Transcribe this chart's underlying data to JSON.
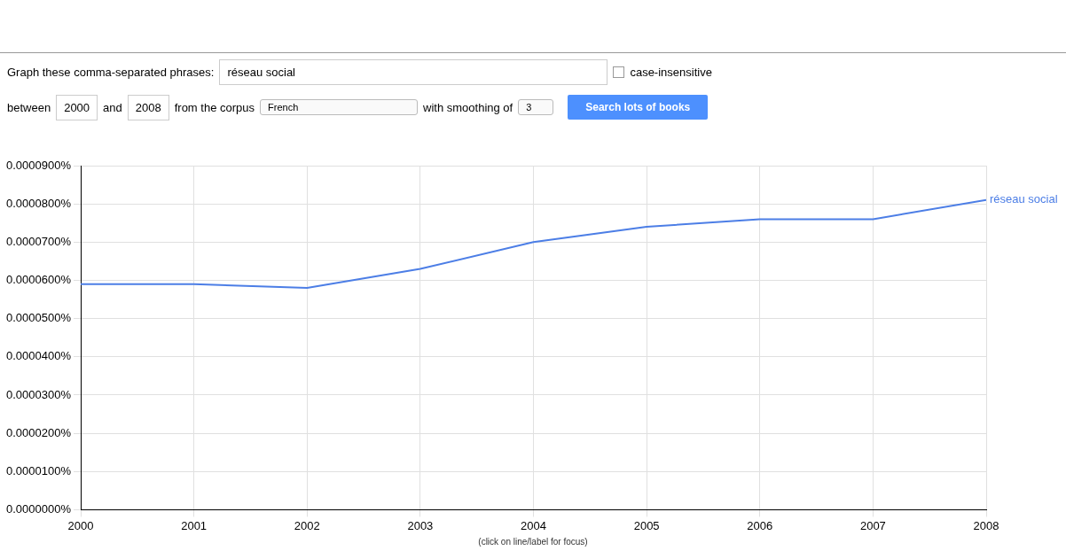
{
  "chart_data": {
    "type": "line",
    "x": [
      2000,
      2001,
      2002,
      2003,
      2004,
      2005,
      2006,
      2007,
      2008
    ],
    "series": [
      {
        "name": "réseau social",
        "color": "#4c7ee6",
        "values": [
          5.9e-05,
          5.9e-05,
          5.8e-05,
          6.3e-05,
          7e-05,
          7.4e-05,
          7.6e-05,
          7.6e-05,
          8.1e-05
        ]
      }
    ],
    "xlim": [
      2000,
      2008
    ],
    "xticks": [
      2000,
      2001,
      2002,
      2003,
      2004,
      2005,
      2006,
      2007,
      2008
    ],
    "ylim": [
      0,
      9e-05
    ],
    "yticks": [
      {
        "value": 0,
        "label": "0.0000000%"
      },
      {
        "value": 1e-05,
        "label": "0.0000100%"
      },
      {
        "value": 2e-05,
        "label": "0.0000200%"
      },
      {
        "value": 3e-05,
        "label": "0.0000300%"
      },
      {
        "value": 4e-05,
        "label": "0.0000400%"
      },
      {
        "value": 5e-05,
        "label": "0.0000500%"
      },
      {
        "value": 6e-05,
        "label": "0.0000600%"
      },
      {
        "value": 7e-05,
        "label": "0.0000700%"
      },
      {
        "value": 8e-05,
        "label": "0.0000800%"
      },
      {
        "value": 9e-05,
        "label": "0.0000900%"
      }
    ],
    "grid": true,
    "legend": false,
    "marker": "none",
    "line_style": "solid",
    "annotations": [
      "Graph these comma-separated phrases:",
      "réseau social",
      "case-insensitive",
      "between",
      "2000",
      "and",
      "2008",
      "from the corpus",
      "French",
      "with smoothing of",
      "3",
      "Search lots of books",
      "(click on line/label for focus)"
    ]
  }
}
